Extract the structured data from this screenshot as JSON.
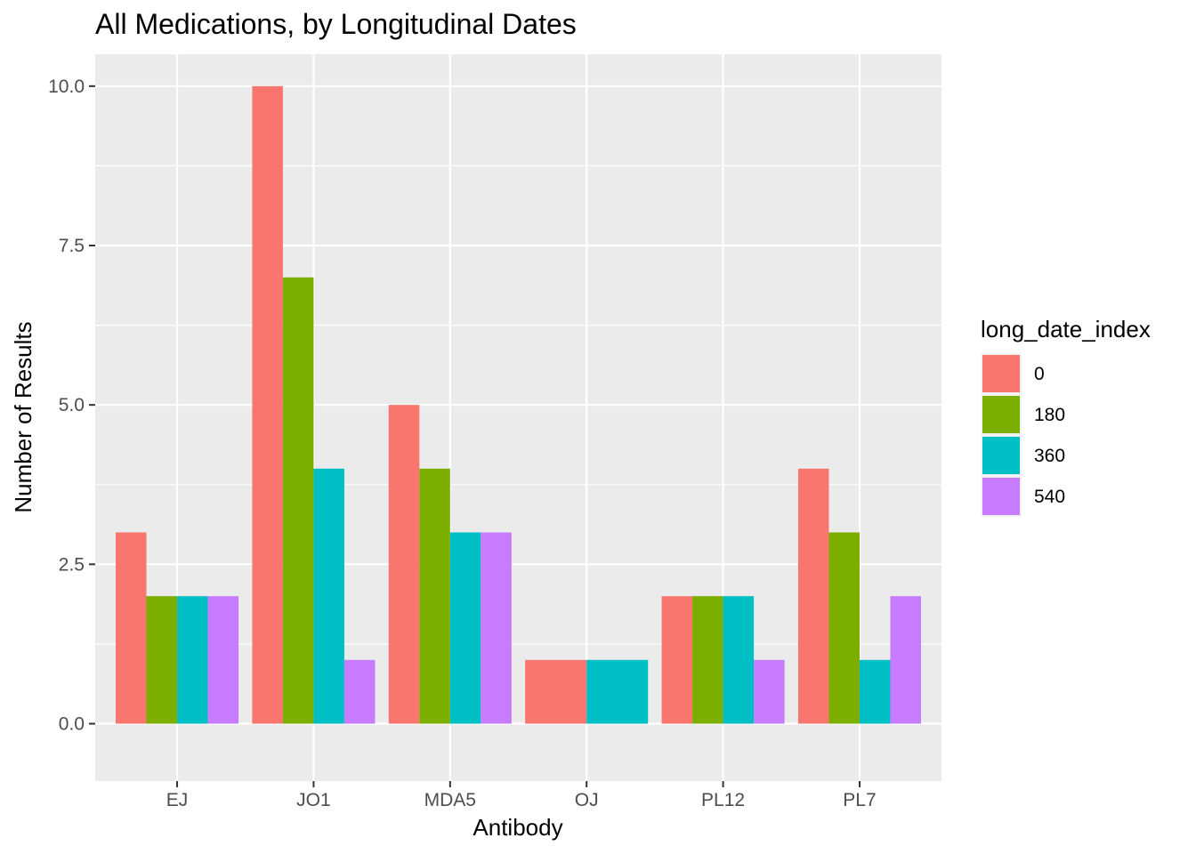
{
  "chart_data": {
    "type": "bar",
    "title": "All Medications, by Longitudinal Dates",
    "xlabel": "Antibody",
    "ylabel": "Number of Results",
    "categories": [
      "EJ",
      "JO1",
      "MDA5",
      "OJ",
      "PL12",
      "PL7"
    ],
    "ylim": [
      -0.9,
      10.5
    ],
    "yticks": [
      0.0,
      2.5,
      5.0,
      7.5,
      10.0
    ],
    "ytick_labels": [
      "0.0",
      "2.5",
      "5.0",
      "7.5",
      "10.0"
    ],
    "grid": true,
    "legend": {
      "title": "long_date_index",
      "position": "right"
    },
    "series": [
      {
        "name": "0",
        "color": "#F8766D",
        "values": [
          3,
          10,
          5,
          1,
          2,
          4
        ]
      },
      {
        "name": "180",
        "color": "#7CAE00",
        "values": [
          2,
          7,
          4,
          null,
          2,
          3
        ]
      },
      {
        "name": "360",
        "color": "#00BFC4",
        "values": [
          2,
          4,
          3,
          1,
          2,
          1
        ]
      },
      {
        "name": "540",
        "color": "#C77CFF",
        "values": [
          2,
          1,
          3,
          null,
          1,
          2
        ]
      }
    ],
    "dodge_widths": [
      [
        1,
        1,
        1,
        1
      ],
      [
        1,
        1,
        1,
        1
      ],
      [
        1,
        1,
        1,
        1
      ],
      [
        2,
        0,
        2,
        0
      ],
      [
        1,
        1,
        1,
        1
      ],
      [
        1,
        1,
        1,
        1
      ]
    ]
  }
}
